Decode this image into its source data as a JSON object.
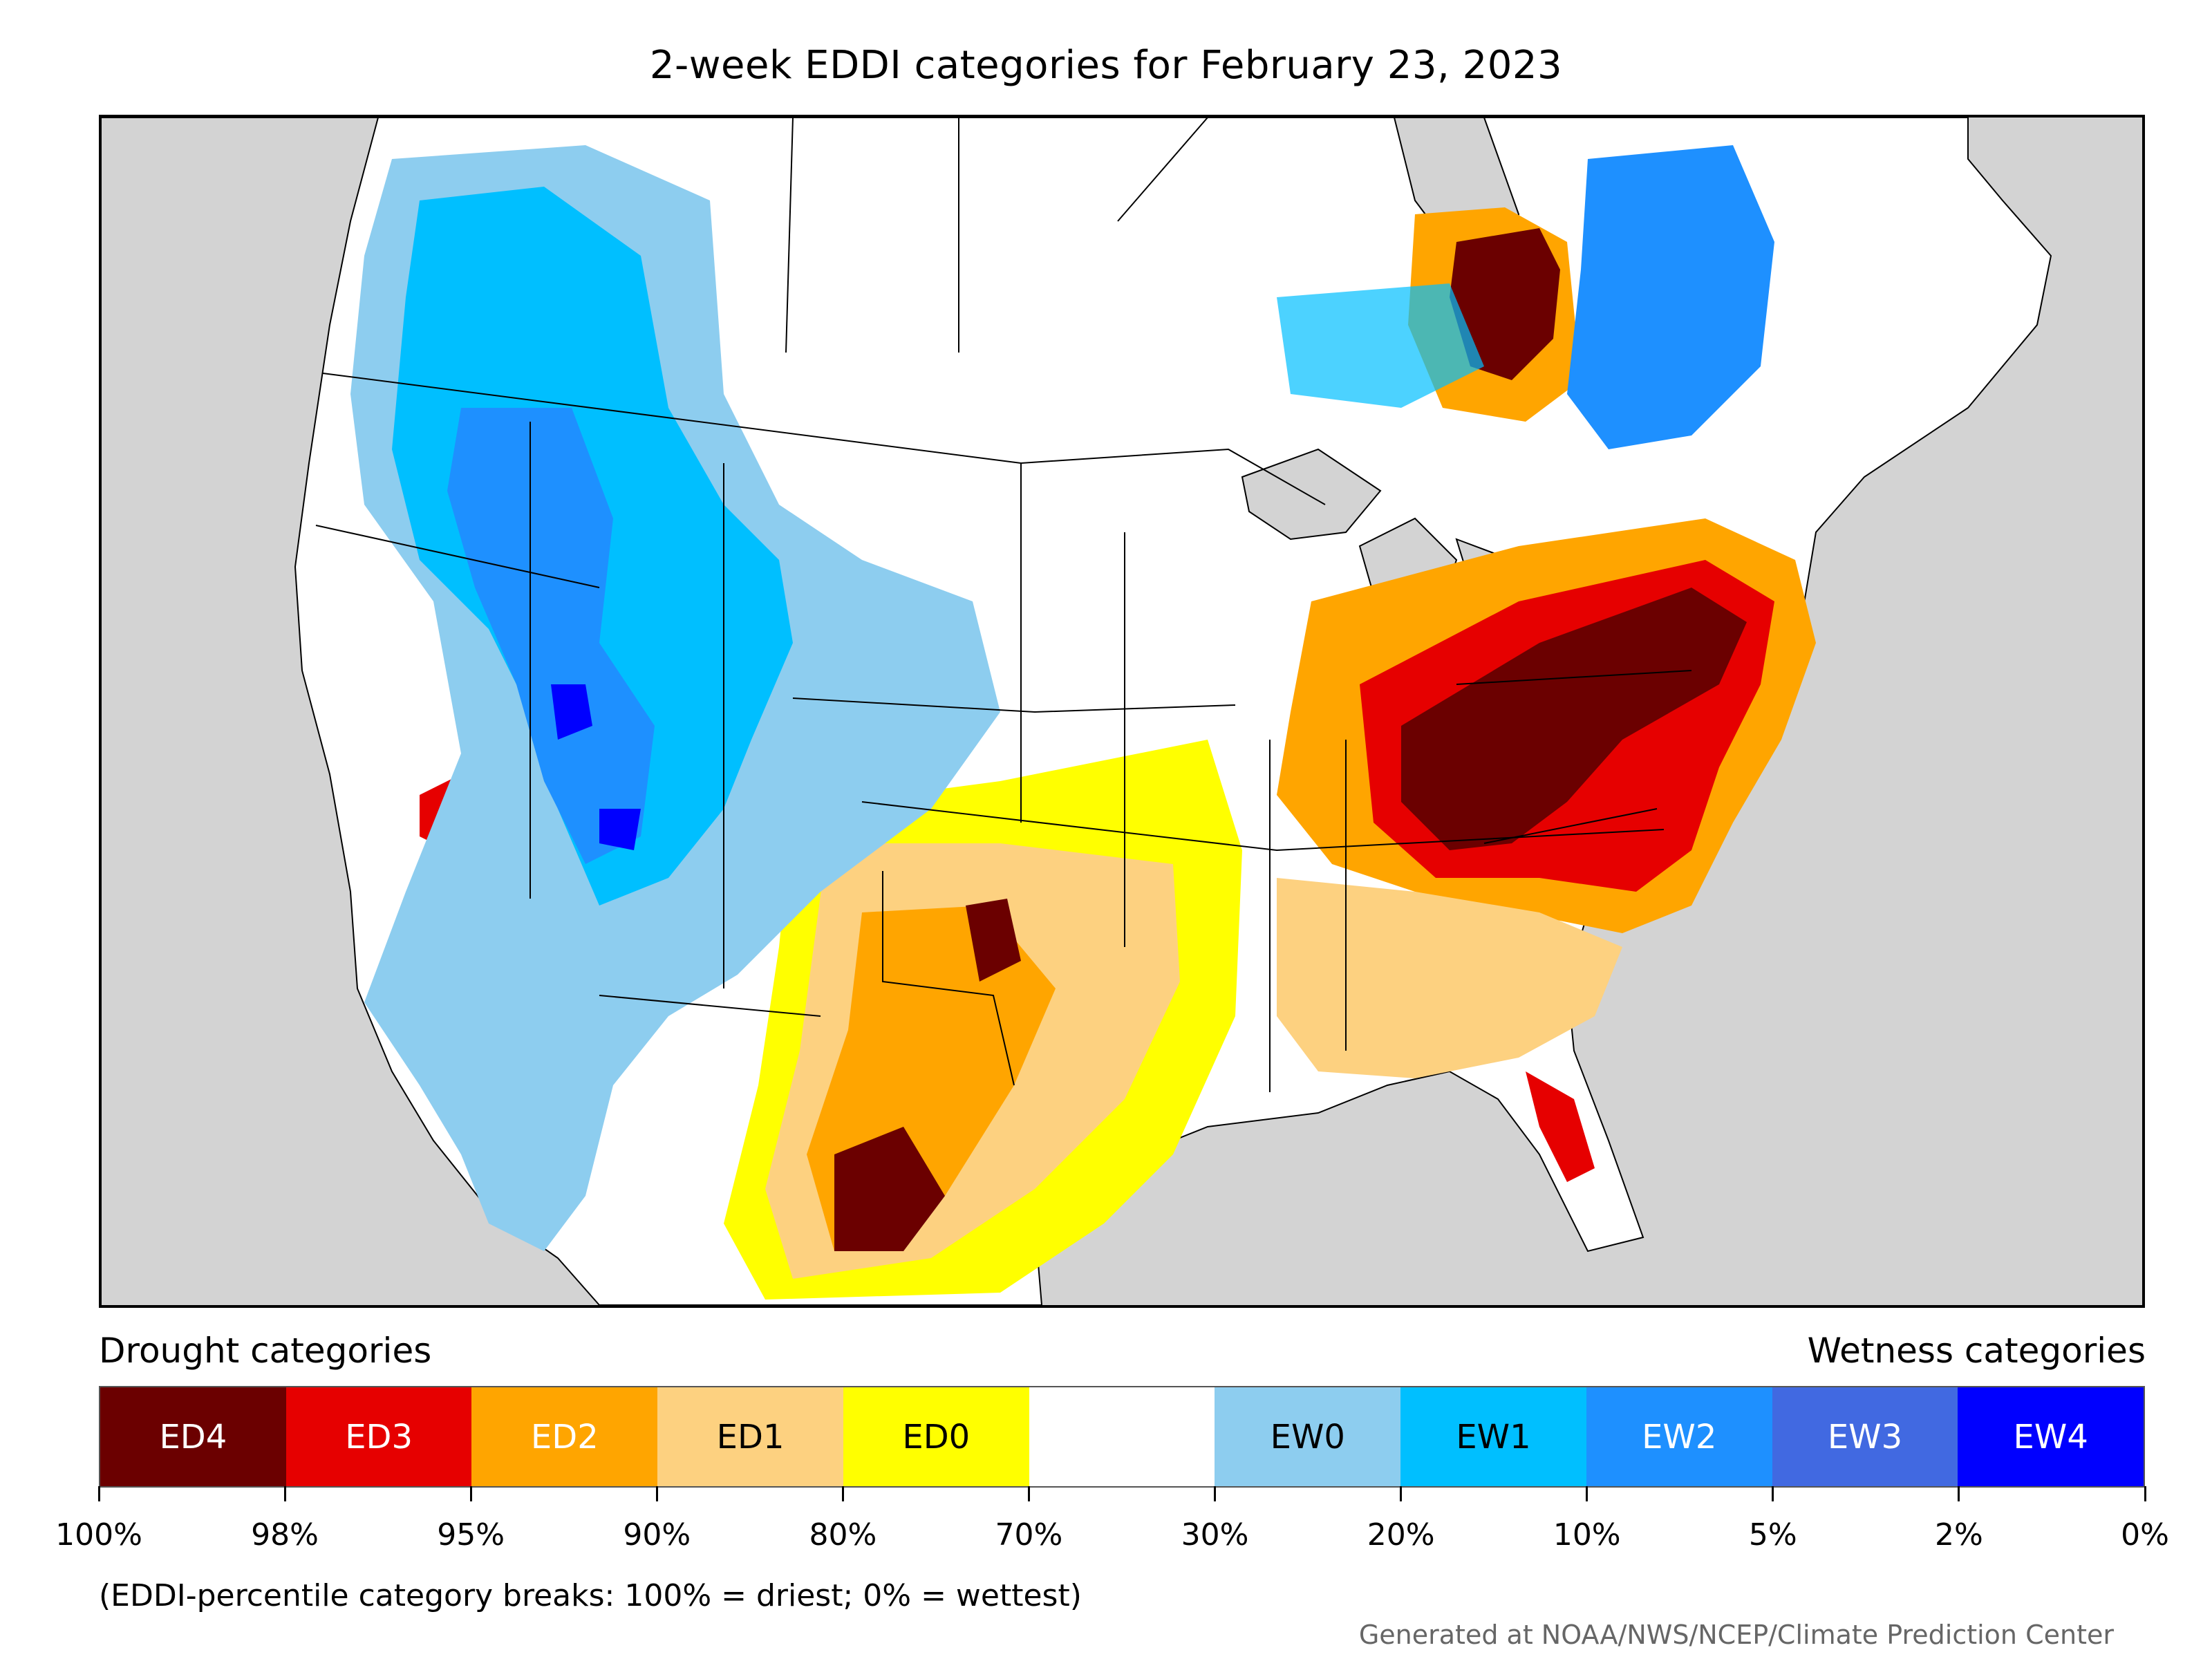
{
  "title": "2-week EDDI categories for February 23, 2023",
  "legend": {
    "drought_heading": "Drought categories",
    "wetness_heading": "Wetness categories",
    "categories": [
      {
        "label": "ED4",
        "color": "#6b0000",
        "text_color": "#ffffff"
      },
      {
        "label": "ED3",
        "color": "#e60000",
        "text_color": "#ffffff"
      },
      {
        "label": "ED2",
        "color": "#ffa500",
        "text_color": "#ffffff"
      },
      {
        "label": "ED1",
        "color": "#fdd180",
        "text_color": "#000000"
      },
      {
        "label": "ED0",
        "color": "#ffff00",
        "text_color": "#000000"
      },
      {
        "label": "",
        "color": "#ffffff",
        "text_color": "#000000"
      },
      {
        "label": "EW0",
        "color": "#8dcdef",
        "text_color": "#000000"
      },
      {
        "label": "EW1",
        "color": "#00bfff",
        "text_color": "#000000"
      },
      {
        "label": "EW2",
        "color": "#1e90ff",
        "text_color": "#ffffff"
      },
      {
        "label": "EW3",
        "color": "#4169e1",
        "text_color": "#ffffff"
      },
      {
        "label": "EW4",
        "color": "#0000ff",
        "text_color": "#ffffff"
      }
    ],
    "breaks": [
      "100%",
      "98%",
      "95%",
      "90%",
      "80%",
      "70%",
      "30%",
      "20%",
      "10%",
      "5%",
      "2%",
      "0%"
    ]
  },
  "note": "(EDDI-percentile category breaks: 100% = driest; 0% = wettest)",
  "credit": "Generated at NOAA/NWS/NCEP/Climate Prediction Center"
}
